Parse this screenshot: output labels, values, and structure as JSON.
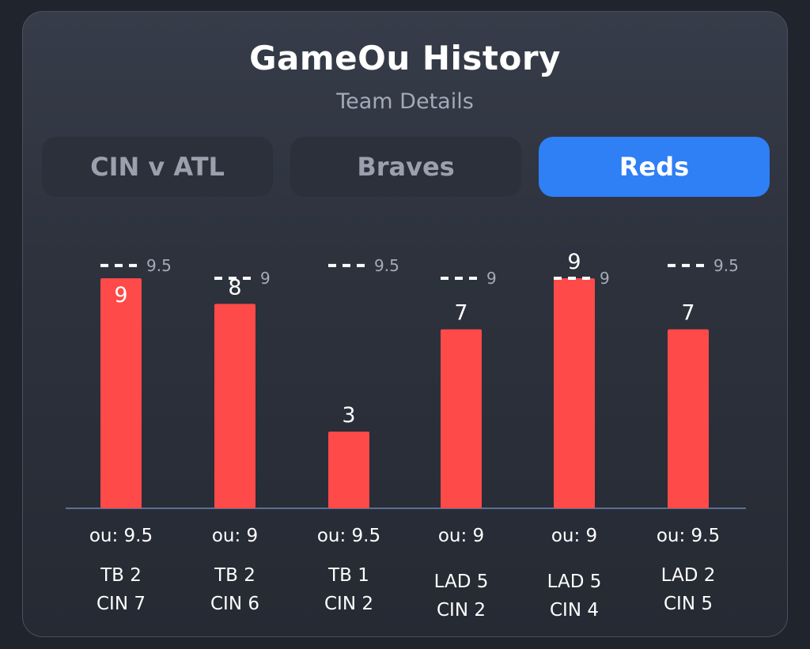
{
  "header": {
    "title": "GameOu History",
    "subtitle": "Team Details"
  },
  "tabs": [
    {
      "label": "CIN v ATL",
      "active": false
    },
    {
      "label": "Braves",
      "active": false
    },
    {
      "label": "Reds",
      "active": true
    }
  ],
  "colors": {
    "bar": "#ff4a4a",
    "active_tab": "#2f7ff5",
    "baseline": "#5d6f99",
    "ou_line": "#ffffff"
  },
  "chart_data": {
    "type": "bar",
    "categories": [
      "TB 2 CIN 7",
      "TB 2 CIN 6",
      "TB 1 CIN 2",
      "LAD 5 CIN 2",
      "LAD 5 CIN 4",
      "LAD 2 CIN 5"
    ],
    "values": [
      9,
      8,
      3,
      7,
      9,
      7
    ],
    "ou_values": [
      9.5,
      9,
      9.5,
      9,
      9,
      9.5
    ],
    "value_labels": [
      "9",
      "8",
      "3",
      "7",
      "9",
      "7"
    ],
    "ou_marker_labels": [
      "9.5",
      "9",
      "9.5",
      "9",
      "9",
      "9.5"
    ],
    "ou_captions": [
      "ou: 9.5",
      "ou: 9",
      "ou: 9.5",
      "ou: 9",
      "ou: 9",
      "ou: 9.5"
    ],
    "category_lines": [
      [
        "TB 2",
        "CIN 7"
      ],
      [
        "TB 2",
        "CIN 6"
      ],
      [
        "TB 1",
        "CIN 2"
      ],
      [
        "LAD 5",
        "CIN 2"
      ],
      [
        "LAD 5",
        "CIN 4"
      ],
      [
        "LAD 2",
        "CIN 5"
      ]
    ],
    "ylim": [
      0,
      9
    ],
    "title": "",
    "xlabel": "",
    "ylabel": "",
    "grid": false
  }
}
